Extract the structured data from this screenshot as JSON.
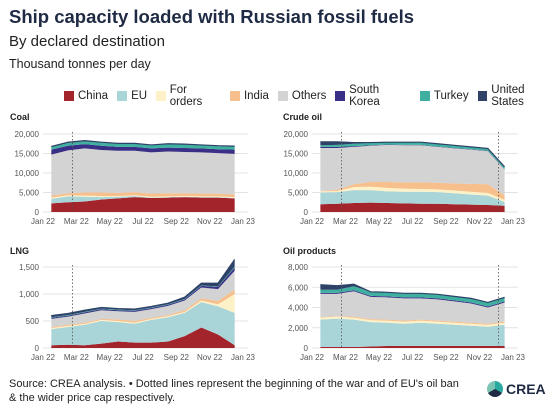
{
  "header": {
    "title": "Ship capacity loaded with Russian fossil fuels",
    "subtitle": "By declared destination",
    "units": "Thousand tonnes per day"
  },
  "legend": [
    {
      "name": "China",
      "color": "#a3252b"
    },
    {
      "name": "EU",
      "color": "#a9d4d8"
    },
    {
      "name": "For orders",
      "color": "#fdf1c8"
    },
    {
      "name": "India",
      "color": "#f6bf8c"
    },
    {
      "name": "Others",
      "color": "#d3d3d3"
    },
    {
      "name": "South Korea",
      "color": "#3a2f86"
    },
    {
      "name": "Turkey",
      "color": "#3fb0a0"
    },
    {
      "name": "United States",
      "color": "#2e4268"
    }
  ],
  "footer": {
    "source": "Source: CREA analysis. • Dotted lines represent the beginning of the war and of EU's oil ban & the wider price cap respectively.",
    "logo_text": "CREA"
  },
  "chart_data": [
    {
      "type": "area",
      "title": "Coal",
      "x": [
        "2022-01",
        "2022-02",
        "2022-03",
        "2022-04",
        "2022-05",
        "2022-06",
        "2022-07",
        "2022-08",
        "2022-09",
        "2022-10",
        "2022-11",
        "2022-12"
      ],
      "xticks": [
        "Jan 22",
        "Mar 22",
        "May 22",
        "Jul 22",
        "Sep 22",
        "Nov 22",
        "Jan 23"
      ],
      "ylim": [
        0,
        20000
      ],
      "yticks": [
        0,
        5000,
        10000,
        15000,
        20000
      ],
      "event_line": "2022-02-24",
      "series": [
        {
          "name": "China",
          "values": [
            2200,
            2500,
            2700,
            3200,
            3500,
            3800,
            3600,
            3700,
            3800,
            3700,
            3700,
            3500
          ]
        },
        {
          "name": "EU",
          "values": [
            1200,
            1500,
            1200,
            600,
            400,
            300,
            100,
            100,
            100,
            100,
            100,
            100
          ]
        },
        {
          "name": "For orders",
          "values": [
            300,
            300,
            300,
            300,
            200,
            200,
            200,
            200,
            200,
            200,
            200,
            200
          ]
        },
        {
          "name": "India",
          "values": [
            500,
            500,
            800,
            900,
            800,
            800,
            800,
            800,
            700,
            700,
            700,
            700
          ]
        },
        {
          "name": "Others",
          "values": [
            10500,
            11000,
            11300,
            10900,
            10800,
            10600,
            10600,
            10700,
            10600,
            10600,
            10400,
            10400
          ]
        },
        {
          "name": "South Korea",
          "values": [
            1300,
            1200,
            1100,
            1100,
            1000,
            1000,
            1000,
            1000,
            1000,
            1000,
            1000,
            1100
          ]
        },
        {
          "name": "Turkey",
          "values": [
            600,
            700,
            700,
            800,
            800,
            800,
            800,
            900,
            900,
            800,
            800,
            800
          ]
        },
        {
          "name": "United States",
          "values": [
            200,
            200,
            200,
            100,
            100,
            100,
            100,
            100,
            100,
            100,
            100,
            100
          ]
        }
      ]
    },
    {
      "type": "area",
      "title": "Crude oil",
      "x": [
        "2022-01",
        "2022-02",
        "2022-03",
        "2022-04",
        "2022-05",
        "2022-06",
        "2022-07",
        "2022-08",
        "2022-09",
        "2022-10",
        "2022-11",
        "2022-12"
      ],
      "xticks": [
        "Jan 22",
        "Mar 22",
        "May 22",
        "Jul 22",
        "Sep 22",
        "Nov 22",
        "Jan 23"
      ],
      "ylim": [
        0,
        20000
      ],
      "yticks": [
        0,
        5000,
        10000,
        15000,
        20000
      ],
      "event_lines": [
        "2022-02-24",
        "2022-12-05"
      ],
      "series": [
        {
          "name": "China",
          "values": [
            2000,
            2100,
            2300,
            2400,
            2300,
            2200,
            2100,
            2100,
            2000,
            1900,
            1800,
            1600
          ]
        },
        {
          "name": "EU",
          "values": [
            3000,
            3000,
            3300,
            3200,
            3000,
            3000,
            3100,
            3000,
            2800,
            2600,
            2400,
            1000
          ]
        },
        {
          "name": "For orders",
          "values": [
            300,
            300,
            800,
            900,
            900,
            800,
            700,
            700,
            700,
            700,
            700,
            500
          ]
        },
        {
          "name": "India",
          "values": [
            100,
            300,
            700,
            1200,
            1500,
            1600,
            1700,
            1700,
            1800,
            2000,
            2200,
            1200
          ]
        },
        {
          "name": "Others",
          "values": [
            11000,
            10700,
            9600,
            9300,
            9500,
            9500,
            9500,
            9200,
            9000,
            8800,
            8500,
            6600
          ]
        },
        {
          "name": "South Korea",
          "values": [
            300,
            300,
            200,
            100,
            100,
            100,
            100,
            100,
            100,
            100,
            100,
            100
          ]
        },
        {
          "name": "Turkey",
          "values": [
            400,
            500,
            600,
            600,
            600,
            700,
            700,
            700,
            700,
            600,
            600,
            600
          ]
        },
        {
          "name": "United States",
          "values": [
            900,
            800,
            300,
            100,
            0,
            0,
            0,
            0,
            0,
            0,
            0,
            0
          ]
        }
      ]
    },
    {
      "type": "area",
      "title": "LNG",
      "x": [
        "2022-01",
        "2022-02",
        "2022-03",
        "2022-04",
        "2022-05",
        "2022-06",
        "2022-07",
        "2022-08",
        "2022-09",
        "2022-10",
        "2022-11",
        "2022-12"
      ],
      "xticks": [
        "Jan 22",
        "Mar 22",
        "May 22",
        "Jul 22",
        "Sep 22",
        "Nov 22",
        "Jan 23"
      ],
      "ylim": [
        0,
        1500
      ],
      "yticks": [
        0,
        500,
        1000,
        1500
      ],
      "event_line": "2022-02-24",
      "series": [
        {
          "name": "China",
          "values": [
            50,
            60,
            50,
            80,
            120,
            100,
            100,
            120,
            220,
            380,
            250,
            50
          ]
        },
        {
          "name": "EU",
          "values": [
            300,
            330,
            380,
            420,
            360,
            350,
            420,
            450,
            430,
            470,
            520,
            600
          ]
        },
        {
          "name": "For orders",
          "values": [
            20,
            20,
            20,
            20,
            20,
            20,
            20,
            20,
            20,
            30,
            40,
            350
          ]
        },
        {
          "name": "India",
          "values": [
            20,
            20,
            20,
            20,
            30,
            30,
            20,
            20,
            30,
            40,
            60,
            80
          ]
        },
        {
          "name": "Others",
          "values": [
            150,
            150,
            170,
            160,
            150,
            170,
            160,
            170,
            180,
            200,
            220,
            350
          ]
        },
        {
          "name": "South Korea",
          "values": [
            20,
            20,
            20,
            20,
            20,
            20,
            20,
            20,
            20,
            30,
            40,
            60
          ]
        },
        {
          "name": "Turkey",
          "values": [
            10,
            10,
            10,
            10,
            10,
            10,
            10,
            10,
            10,
            10,
            10,
            20
          ]
        },
        {
          "name": "United States",
          "values": [
            30,
            30,
            30,
            20,
            20,
            20,
            20,
            20,
            30,
            40,
            60,
            130
          ]
        }
      ]
    },
    {
      "type": "area",
      "title": "Oil products",
      "x": [
        "2022-01",
        "2022-02",
        "2022-03",
        "2022-04",
        "2022-05",
        "2022-06",
        "2022-07",
        "2022-08",
        "2022-09",
        "2022-10",
        "2022-11",
        "2022-12"
      ],
      "xticks": [
        "Jan 22",
        "Mar 22",
        "May 22",
        "Jul 22",
        "Sep 22",
        "Nov 22",
        "Jan 23"
      ],
      "ylim": [
        0,
        8000
      ],
      "yticks": [
        0,
        2000,
        4000,
        6000,
        8000
      ],
      "event_lines": [
        "2022-02-24",
        "2022-12-05"
      ],
      "series": [
        {
          "name": "China",
          "values": [
            100,
            100,
            100,
            150,
            200,
            200,
            200,
            200,
            200,
            200,
            200,
            200
          ]
        },
        {
          "name": "EU",
          "values": [
            2700,
            2800,
            2700,
            2400,
            2300,
            2200,
            2300,
            2200,
            2100,
            2000,
            1900,
            2100
          ]
        },
        {
          "name": "For orders",
          "values": [
            200,
            200,
            200,
            200,
            200,
            200,
            200,
            200,
            200,
            200,
            200,
            200
          ]
        },
        {
          "name": "India",
          "values": [
            50,
            50,
            100,
            100,
            100,
            100,
            100,
            100,
            100,
            100,
            100,
            100
          ]
        },
        {
          "name": "Others",
          "values": [
            2300,
            2200,
            2500,
            2200,
            2200,
            2200,
            2100,
            2100,
            2000,
            1900,
            1600,
            1900
          ]
        },
        {
          "name": "South Korea",
          "values": [
            100,
            100,
            100,
            100,
            100,
            100,
            100,
            100,
            100,
            100,
            100,
            100
          ]
        },
        {
          "name": "Turkey",
          "values": [
            300,
            300,
            400,
            400,
            400,
            400,
            400,
            400,
            400,
            400,
            400,
            400
          ]
        },
        {
          "name": "United States",
          "values": [
            500,
            400,
            200,
            0,
            0,
            0,
            0,
            0,
            0,
            0,
            0,
            0
          ]
        }
      ]
    }
  ]
}
